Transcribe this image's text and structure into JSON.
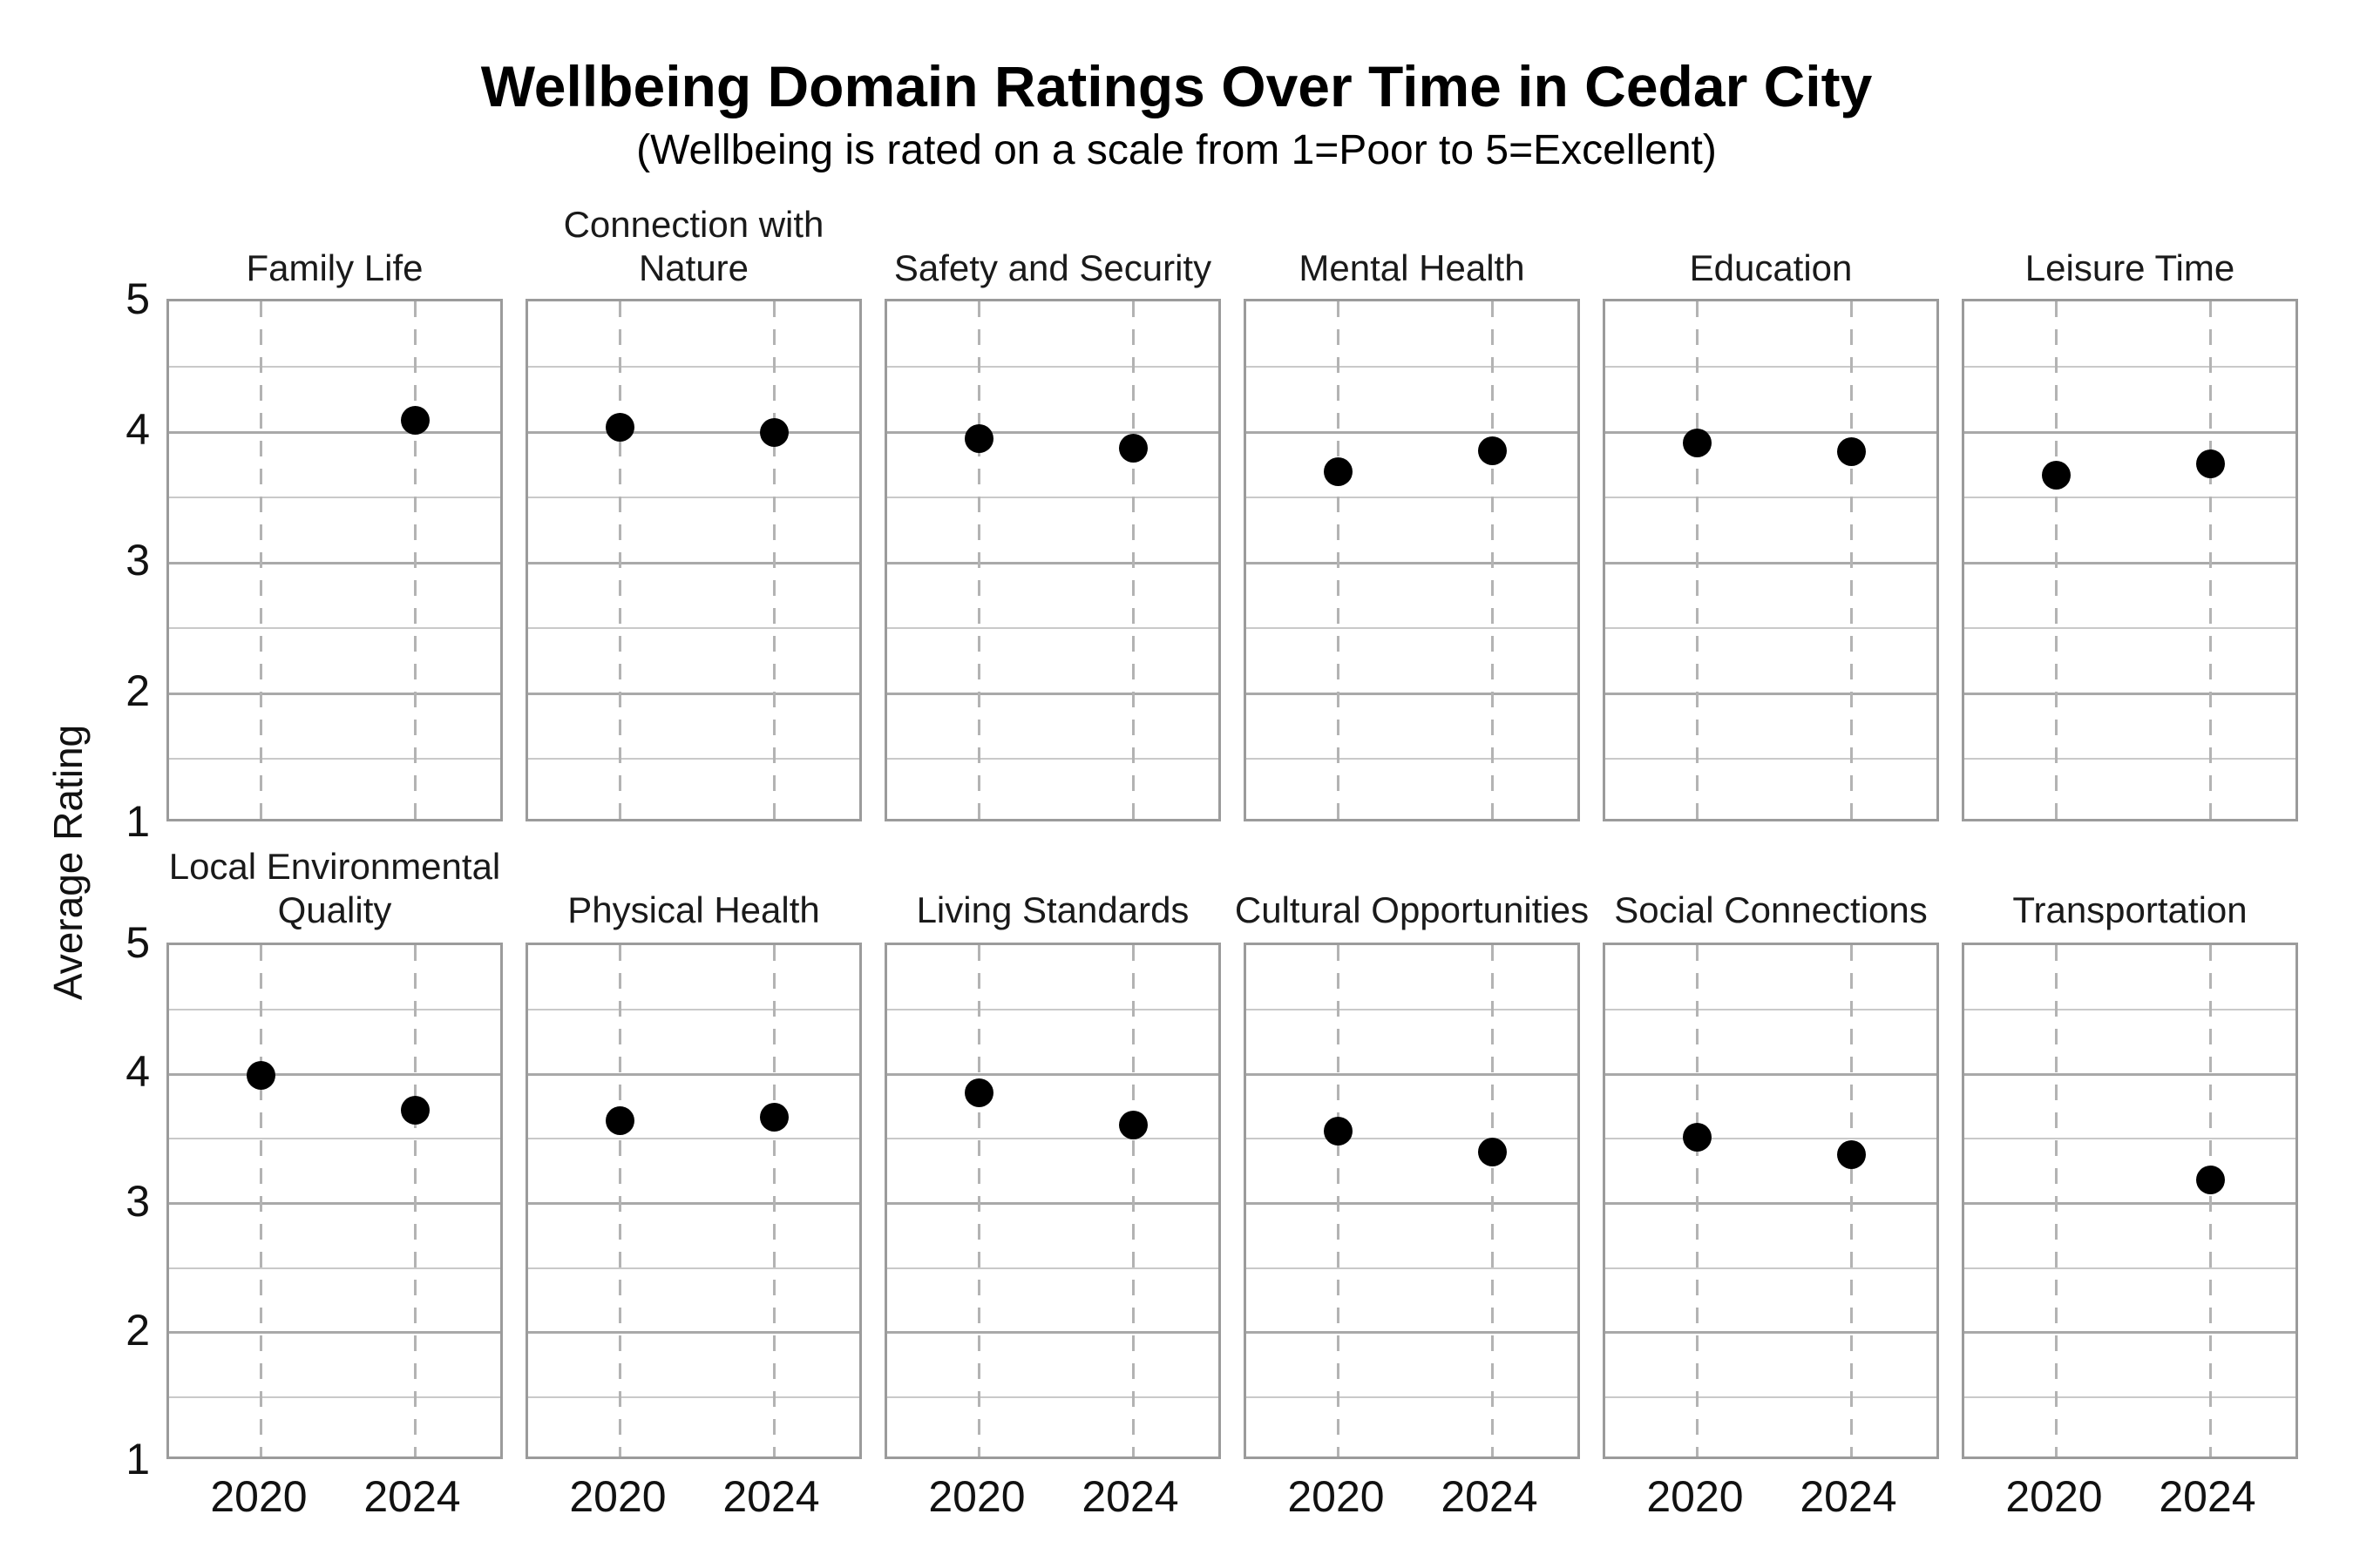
{
  "page": {
    "title": "Wellbeing Domain Ratings Over Time in Cedar City",
    "subtitle": "(Wellbeing is rated on a scale from 1=Poor to 5=Excellent)",
    "ylabel": "Average Rating"
  },
  "chart_data": {
    "type": "scatter",
    "layout": "small_multiples",
    "grid_rows": 2,
    "grid_cols": 6,
    "x_categories": [
      "2020",
      "2024"
    ],
    "ylim": [
      1,
      5
    ],
    "yticks": [
      5,
      4,
      3,
      2,
      1
    ],
    "minor_gridline_step": 0.5,
    "vertical_gridlines": "dashed_at_x_categories",
    "point_color": "#000000",
    "major_gridline_color": "#a9a9a9",
    "minor_gridline_color": "#c9c9c9",
    "panel_border_color": "#9b9b9b",
    "panels": [
      {
        "title": "Family Life",
        "values": [
          null,
          4.09
        ]
      },
      {
        "title": "Connection with Nature",
        "values": [
          4.04,
          4.0
        ]
      },
      {
        "title": "Safety and Security",
        "values": [
          3.95,
          3.88
        ]
      },
      {
        "title": "Mental Health",
        "values": [
          3.7,
          3.86
        ]
      },
      {
        "title": "Education",
        "values": [
          3.92,
          3.85
        ]
      },
      {
        "title": "Leisure Time",
        "values": [
          3.67,
          3.76
        ]
      },
      {
        "title": "Local Environmental Quality",
        "values": [
          3.99,
          3.72
        ]
      },
      {
        "title": "Physical Health",
        "values": [
          3.64,
          3.67
        ]
      },
      {
        "title": "Living Standards",
        "values": [
          3.86,
          3.61
        ]
      },
      {
        "title": "Cultural Opportunities",
        "values": [
          3.56,
          3.4
        ]
      },
      {
        "title": "Social Connections",
        "values": [
          3.51,
          3.38
        ]
      },
      {
        "title": "Transportation",
        "values": [
          null,
          3.18
        ]
      }
    ]
  }
}
